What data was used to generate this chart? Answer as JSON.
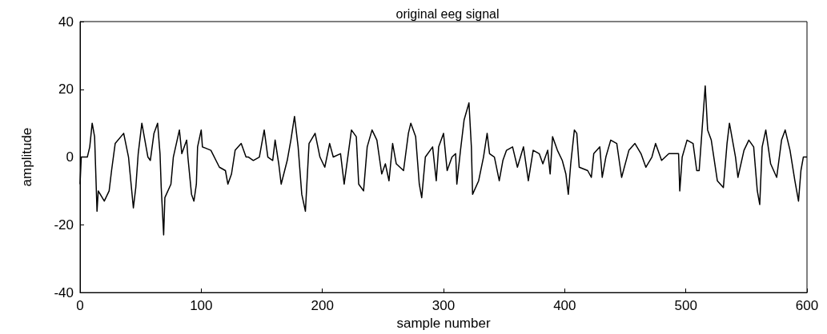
{
  "chart_data": {
    "type": "line",
    "title": "original eeg signal",
    "xlabel": "sample number",
    "ylabel": "amplitude",
    "xlim": [
      0,
      600
    ],
    "xticks": [
      0,
      100,
      200,
      300,
      400,
      500,
      600
    ],
    "ylim": [
      -40,
      40
    ],
    "yticks": [
      -40,
      -20,
      0,
      20,
      40
    ],
    "grid": false,
    "marker": "none",
    "line_style": "solid",
    "series": [
      {
        "color": "#000000",
        "x": [
          0,
          1,
          6,
          8,
          10,
          12,
          14,
          15,
          20,
          24,
          26,
          29,
          36,
          40,
          44,
          46,
          48,
          51,
          53,
          56,
          58,
          61,
          64,
          66,
          67,
          69,
          70,
          75,
          77,
          82,
          84,
          88,
          89,
          92,
          94,
          96,
          97,
          100,
          101,
          108,
          115,
          120,
          122,
          125,
          128,
          133,
          137,
          139,
          143,
          148,
          152,
          155,
          159,
          161,
          164,
          166,
          171,
          174,
          177,
          180,
          183,
          186,
          189,
          194,
          198,
          202,
          206,
          209,
          215,
          218,
          224,
          228,
          230,
          234,
          237,
          241,
          245,
          249,
          252,
          255,
          258,
          261,
          267,
          271,
          273,
          277,
          280,
          282,
          285,
          291,
          294,
          296,
          300,
          303,
          307,
          310,
          311,
          314,
          317,
          321,
          323,
          324,
          329,
          333,
          336,
          338,
          342,
          346,
          349,
          352,
          357,
          361,
          366,
          370,
          374,
          379,
          382,
          386,
          388,
          390,
          394,
          398,
          401,
          403,
          405,
          408,
          410,
          412,
          419,
          422,
          424,
          429,
          431,
          434,
          438,
          443,
          447,
          453,
          458,
          463,
          467,
          472,
          475,
          480,
          486,
          494,
          495,
          497,
          501,
          506,
          509,
          511,
          514,
          516,
          518,
          521,
          526,
          531,
          534,
          536,
          541,
          543,
          548,
          552,
          556,
          559,
          561,
          563,
          566,
          570,
          575,
          579,
          582,
          586,
          590,
          593,
          595,
          597,
          600
        ],
        "values": [
          -8,
          0,
          0,
          3,
          10,
          6,
          -16,
          -10,
          -13,
          -10,
          -4,
          4,
          7,
          0,
          -15,
          -9,
          1,
          10,
          6,
          0,
          -1,
          7,
          10,
          1,
          -9,
          -23,
          -12,
          -8,
          0,
          8,
          1,
          5,
          0,
          -11,
          -13,
          -8,
          3,
          8,
          3,
          2,
          -3,
          -4,
          -8,
          -5,
          2,
          4,
          0,
          0,
          -1,
          0,
          8,
          0,
          -1,
          5,
          -2,
          -8,
          -1,
          5,
          12,
          3,
          -11,
          -16,
          4,
          7,
          0,
          -3,
          4,
          0,
          1,
          -8,
          8,
          6,
          -8,
          -10,
          3,
          8,
          5,
          -5,
          -2,
          -7,
          4,
          -2,
          -4,
          7,
          10,
          6,
          -8,
          -12,
          0,
          3,
          -7,
          3,
          7,
          -4,
          0,
          1,
          -8,
          2,
          11,
          16,
          3,
          -11,
          -7,
          0,
          7,
          1,
          0,
          -7,
          -1,
          2,
          3,
          -3,
          3,
          -7,
          2,
          1,
          -2,
          2,
          -5,
          6,
          2,
          -1,
          -5,
          -11,
          -2,
          8,
          7,
          -3,
          -4,
          -6,
          1,
          3,
          -6,
          0,
          5,
          4,
          -6,
          2,
          4,
          1,
          -3,
          0,
          4,
          -1,
          1,
          1,
          -10,
          0,
          5,
          4,
          -4,
          -4,
          11,
          21,
          8,
          5,
          -7,
          -9,
          4,
          10,
          0,
          -6,
          2,
          5,
          3,
          -10,
          -14,
          3,
          8,
          -2,
          -6,
          5,
          8,
          2,
          -7,
          -13,
          -4,
          0,
          0
        ]
      }
    ]
  }
}
